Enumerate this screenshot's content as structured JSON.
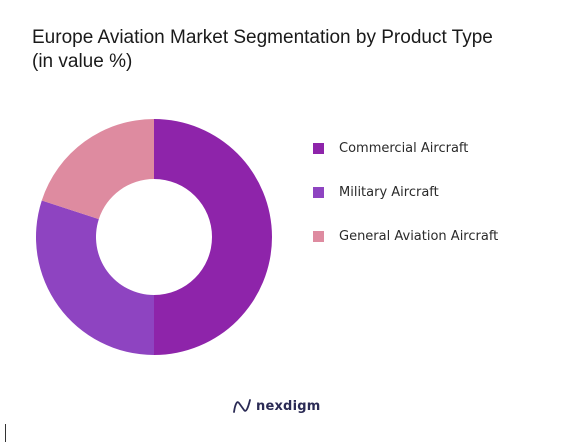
{
  "chart_data": {
    "type": "pie",
    "variant": "donut",
    "title": "Europe Aviation Market Segmentation by Product Type (in value %)",
    "categories": [
      "Commercial Aircraft",
      "Military Aircraft",
      "General Aviation Aircraft"
    ],
    "values": [
      50,
      30,
      20
    ],
    "colors": [
      "#8e24aa",
      "#8e44c1",
      "#de8ba0"
    ],
    "legend_position": "right"
  },
  "branding": {
    "name": "nexdigm",
    "icon": "nexdigm-logo-icon"
  }
}
